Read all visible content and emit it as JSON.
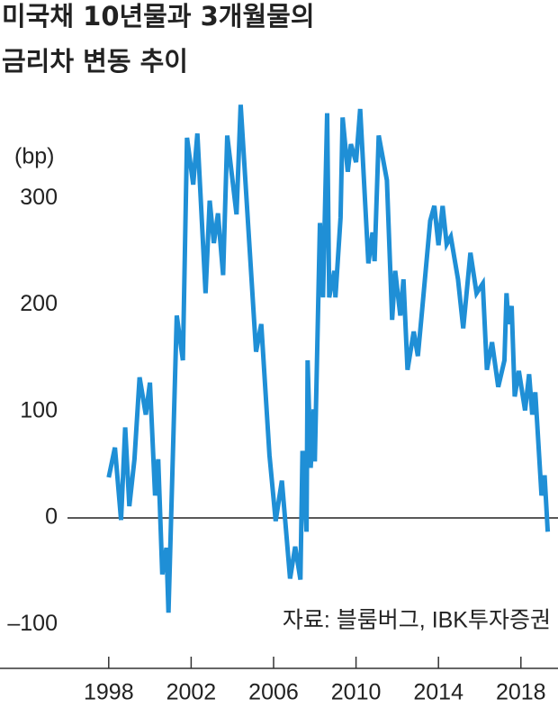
{
  "chart_data": {
    "type": "line",
    "title": [
      "미국채 10년물과 3개월물의",
      "금리차 변동 추이"
    ],
    "y_label": "(bp)",
    "source": "자료: 블룸버그, IBK투자증권",
    "xlim": [
      1996,
      2019.8
    ],
    "ylim": [
      -110,
      340
    ],
    "xticks": [
      1998,
      2002,
      2006,
      2010,
      2014,
      2018
    ],
    "yticks": [
      {
        "value": -100,
        "label": "–100"
      },
      0,
      100,
      200,
      300
    ],
    "zero_line": true,
    "series": [
      {
        "color": "#1f8fd6",
        "x": [
          1998.0,
          1998.3,
          1998.6,
          1998.8,
          1999.0,
          1999.25,
          1999.5,
          1999.8,
          2000.0,
          2000.25,
          2000.4,
          2000.6,
          2000.8,
          2000.9,
          2001.3,
          2001.6,
          2001.8,
          2002.1,
          2002.3,
          2002.7,
          2002.9,
          2003.1,
          2003.3,
          2003.55,
          2003.75,
          2004.2,
          2004.4,
          2005.15,
          2005.4,
          2005.8,
          2006.1,
          2006.4,
          2006.8,
          2007.05,
          2007.3,
          2007.4,
          2007.6,
          2007.65,
          2007.8,
          2007.95,
          2008.0,
          2008.25,
          2008.4,
          2008.6,
          2008.7,
          2008.95,
          2009.0,
          2009.25,
          2009.35,
          2009.6,
          2009.75,
          2010.0,
          2010.2,
          2010.6,
          2010.8,
          2010.9,
          2011.1,
          2011.5,
          2011.75,
          2011.9,
          2012.15,
          2012.3,
          2012.5,
          2012.8,
          2013.0,
          2013.2,
          2013.6,
          2013.8,
          2014.0,
          2014.2,
          2014.4,
          2014.6,
          2014.95,
          2015.2,
          2015.55,
          2015.85,
          2016.15,
          2016.35,
          2016.6,
          2016.9,
          2017.2,
          2017.3,
          2017.4,
          2017.55,
          2017.7,
          2017.9,
          2018.2,
          2018.4,
          2018.55,
          2018.7,
          2019.0,
          2019.15,
          2019.3
        ],
        "values": [
          38,
          66,
          -2,
          85,
          11,
          55,
          132,
          97,
          127,
          21,
          55,
          -53,
          -28,
          -89,
          190,
          148,
          357,
          313,
          361,
          211,
          298,
          258,
          286,
          228,
          359,
          285,
          388,
          156,
          182,
          59,
          -3,
          35,
          -57,
          -27,
          -58,
          63,
          -13,
          148,
          47,
          102,
          53,
          277,
          207,
          380,
          207,
          232,
          207,
          282,
          376,
          325,
          351,
          334,
          384,
          239,
          268,
          241,
          359,
          317,
          186,
          232,
          190,
          224,
          139,
          175,
          152,
          194,
          279,
          293,
          256,
          293,
          257,
          264,
          224,
          178,
          249,
          211,
          220,
          139,
          165,
          123,
          148,
          211,
          182,
          199,
          114,
          138,
          101,
          135,
          97,
          118,
          21,
          40,
          -13
        ]
      }
    ]
  }
}
